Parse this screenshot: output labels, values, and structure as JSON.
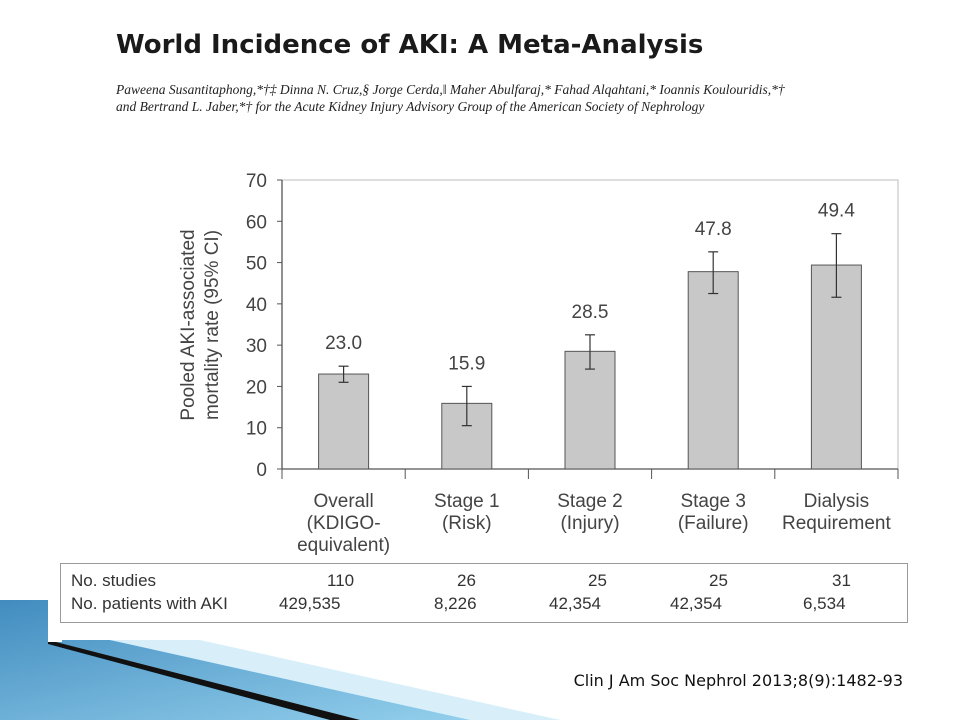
{
  "header": {
    "title": "World Incidence of AKI: A Meta-Analysis",
    "authors_line1": "Paweena Susantitaphong,*†‡ Dinna N. Cruz,§ Jorge Cerda,‖ Maher Abulfaraj,* Fahad Alqahtani,* Ioannis Koulouridis,*†",
    "authors_line2": "and Bertrand L. Jaber,*† for the Acute Kidney Injury Advisory Group of the American Society of Nephrology"
  },
  "chart_data": {
    "type": "bar",
    "categories": [
      [
        "Overall",
        "(KDIGO-",
        "equivalent)"
      ],
      [
        "Stage 1",
        "(Risk)"
      ],
      [
        "Stage 2",
        "(Injury)"
      ],
      [
        "Stage 3",
        "(Failure)"
      ],
      [
        "Dialysis",
        "Requirement"
      ]
    ],
    "values": [
      23.0,
      15.9,
      28.5,
      47.8,
      49.4
    ],
    "value_labels": [
      "23.0",
      "15.9",
      "28.5",
      "47.8",
      "49.4"
    ],
    "ci_low": [
      21.0,
      10.5,
      24.2,
      42.5,
      41.6
    ],
    "ci_high": [
      24.9,
      20.0,
      32.5,
      52.6,
      57.0
    ],
    "ylabel_line1": "Pooled AKI-associated",
    "ylabel_line2": "mortality rate (95% CI)",
    "yticks": [
      "0",
      "10",
      "20",
      "30",
      "40",
      "50",
      "60",
      "70"
    ],
    "ylim": [
      0,
      70
    ],
    "grid": false,
    "bar_color": "#c8c8c8",
    "axis_color": "#555555"
  },
  "table": {
    "rows": [
      {
        "label": "No. studies",
        "values": [
          "110",
          "26",
          "25",
          "25",
          "31"
        ]
      },
      {
        "label": "No. patients with AKI",
        "values": [
          "429,535",
          "8,226",
          "42,354",
          "42,354",
          "6,534"
        ]
      }
    ]
  },
  "footer": {
    "citation": "Clin J Am Soc Nephrol 2013;8(9):1482-93"
  },
  "theme": {
    "accent_blue": "#4aa3d8",
    "accent_dark": "#111111"
  }
}
